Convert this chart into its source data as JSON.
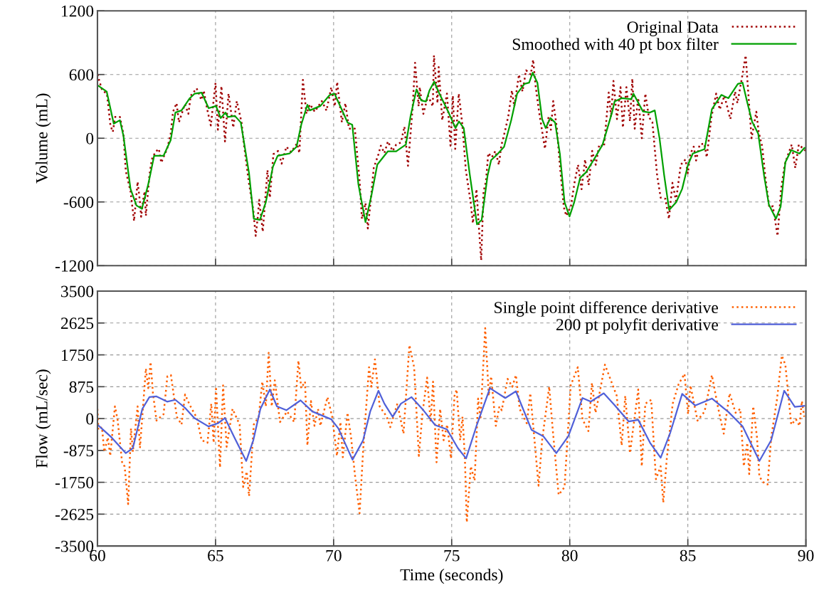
{
  "chart_data": [
    {
      "type": "line",
      "ylabel": "Volume (mL)",
      "xlim": [
        60,
        90
      ],
      "xticks": [
        60,
        65,
        70,
        75,
        80,
        85,
        90
      ],
      "ylim": [
        -1200,
        1200
      ],
      "yticks": [
        -1200,
        -600,
        0,
        600,
        1200
      ],
      "tick_labels": "y",
      "grid": true,
      "legend": "top right",
      "series": [
        {
          "name": "Original Data",
          "color": "#a00000",
          "line_style": "dotted",
          "x": [
            60.0,
            60.2,
            60.4,
            60.55,
            60.65,
            60.75,
            60.95,
            61.1,
            61.2,
            61.4,
            61.55,
            61.7,
            61.8,
            61.85,
            61.95,
            62.0,
            62.05,
            62.2,
            62.3,
            62.45,
            62.6,
            62.7,
            62.95,
            63.1,
            63.2,
            63.35,
            63.45,
            63.7,
            63.85,
            63.95,
            64.2,
            64.4,
            64.5,
            64.65,
            64.8,
            65.0,
            65.1,
            65.25,
            65.4,
            65.55,
            65.75,
            65.9,
            66.1,
            66.2,
            66.4,
            66.6,
            66.7,
            66.8,
            66.85,
            67.0,
            67.2,
            67.3,
            67.45,
            67.65,
            67.8,
            68.0,
            68.2,
            68.45,
            68.55,
            68.7,
            68.85,
            69.0,
            69.2,
            69.5,
            69.7,
            69.9,
            70.05,
            70.15,
            70.35,
            70.5,
            70.65,
            70.9,
            71.1,
            71.2,
            71.35,
            71.45,
            71.6,
            71.7,
            71.9,
            72.0,
            72.15,
            72.3,
            72.5,
            72.65,
            72.85,
            73.0,
            73.15,
            73.35,
            73.45,
            73.6,
            73.65,
            73.8,
            74.0,
            74.2,
            74.25,
            74.4,
            74.45,
            74.6,
            74.8,
            74.95,
            75.05,
            75.15,
            75.3,
            75.45,
            75.6,
            75.8,
            75.9,
            76.05,
            76.15,
            76.25,
            76.35,
            76.45,
            76.55,
            76.7,
            76.85,
            77.0,
            77.1,
            77.25,
            77.4,
            77.55,
            77.65,
            77.85,
            78.0,
            78.15,
            78.35,
            78.45,
            78.55,
            78.7,
            78.95,
            79.1,
            79.2,
            79.3,
            79.45,
            79.6,
            79.75,
            79.85,
            80.05,
            80.2,
            80.35,
            80.5,
            80.65,
            80.8,
            80.95,
            81.1,
            81.25,
            81.45,
            81.55,
            81.65,
            81.75,
            81.85,
            82.0,
            82.15,
            82.25,
            82.4,
            82.55,
            82.65,
            82.75,
            82.9,
            83.05,
            83.2,
            83.35,
            83.5,
            83.7,
            83.85,
            84.05,
            84.2,
            84.35,
            84.5,
            84.7,
            84.9,
            85.0,
            85.1,
            85.25,
            85.35,
            85.5,
            85.7,
            85.8,
            86.0,
            86.2,
            86.35,
            86.55,
            86.8,
            87.0,
            87.1,
            87.3,
            87.45,
            87.6,
            87.7,
            87.9,
            88.0,
            88.15,
            88.3,
            88.45,
            88.6,
            88.8,
            88.95,
            89.1,
            89.25,
            89.4,
            89.55,
            89.7,
            89.85,
            90.0
          ],
          "values": [
            600,
            450,
            420,
            120,
            60,
            200,
            200,
            40,
            -310,
            -500,
            -780,
            -410,
            -600,
            -740,
            -560,
            -500,
            -730,
            -350,
            -200,
            -130,
            -100,
            -230,
            -100,
            40,
            250,
            330,
            150,
            320,
            230,
            400,
            470,
            360,
            450,
            270,
            120,
            520,
            80,
            490,
            -30,
            420,
            100,
            350,
            150,
            -50,
            -400,
            -680,
            -920,
            -720,
            -580,
            -880,
            -300,
            -560,
            -150,
            -120,
            -240,
            -80,
            -130,
            -50,
            -140,
            550,
            230,
            320,
            250,
            350,
            260,
            480,
            300,
            530,
            150,
            330,
            90,
            90,
            -400,
            -760,
            -610,
            -850,
            -520,
            -280,
            -150,
            -70,
            -140,
            -30,
            -120,
            -60,
            -40,
            110,
            -260,
            300,
            710,
            300,
            480,
            230,
            400,
            300,
            780,
            330,
            670,
            170,
            420,
            -70,
            400,
            -100,
            420,
            130,
            -300,
            -600,
            -800,
            -480,
            -830,
            -1150,
            -500,
            -410,
            -140,
            -180,
            -120,
            -250,
            -70,
            60,
            210,
            450,
            300,
            600,
            440,
            640,
            600,
            740,
            500,
            250,
            -100,
            200,
            80,
            350,
            100,
            -300,
            -650,
            -730,
            -640,
            -420,
            -250,
            -480,
            -200,
            -440,
            -120,
            -250,
            -60,
            -80,
            170,
            430,
            200,
            540,
            180,
            480,
            100,
            480,
            160,
            560,
            90,
            380,
            0,
            420,
            200,
            150,
            -350,
            -560,
            -570,
            -760,
            -420,
            -590,
            -250,
            -200,
            -330,
            -150,
            -80,
            -210,
            -60,
            -50,
            -180,
            200,
            420,
            270,
            400,
            180,
            440,
            330,
            580,
            780,
            300,
            0,
            250,
            60,
            -80,
            -400,
            -650,
            -640,
            -920,
            -480,
            -250,
            -150,
            -60,
            -280,
            -60,
            -90,
            -120
          ]
        },
        {
          "name": "Smoothed with 40 pt box filter",
          "color": "#00a000",
          "line_style": "solid",
          "x": [
            60.0,
            60.39,
            60.69,
            60.95,
            61.1,
            61.4,
            61.65,
            61.88,
            62.15,
            62.4,
            62.8,
            63.1,
            63.3,
            63.56,
            63.91,
            64.11,
            64.41,
            64.71,
            65.02,
            65.22,
            65.42,
            65.52,
            65.82,
            66.07,
            66.42,
            66.62,
            66.88,
            67.13,
            67.43,
            67.63,
            68.13,
            68.43,
            68.63,
            68.89,
            68.99,
            69.44,
            69.84,
            70.04,
            70.34,
            70.59,
            70.79,
            71.05,
            71.35,
            71.6,
            71.85,
            72.3,
            72.65,
            73.06,
            73.26,
            73.51,
            73.71,
            73.91,
            74.06,
            74.26,
            74.46,
            74.87,
            75.16,
            75.31,
            75.51,
            75.76,
            76.07,
            76.27,
            76.52,
            76.67,
            76.92,
            77.22,
            77.52,
            77.77,
            78.08,
            78.28,
            78.43,
            78.63,
            78.83,
            78.98,
            79.18,
            79.38,
            79.58,
            79.78,
            79.99,
            80.19,
            80.44,
            80.69,
            81.09,
            81.39,
            81.79,
            81.9,
            82.2,
            82.6,
            82.7,
            83.1,
            83.4,
            83.6,
            83.8,
            84.0,
            84.21,
            84.51,
            84.76,
            85.01,
            85.21,
            85.71,
            86.02,
            86.42,
            86.72,
            87.12,
            87.32,
            87.52,
            87.72,
            87.98,
            88.23,
            88.43,
            88.73,
            88.93,
            89.13,
            89.38,
            89.73,
            89.93,
            90.0
          ],
          "values": [
            500,
            440,
            137,
            170,
            23,
            -477,
            -633,
            -665,
            -435,
            -165,
            -165,
            -19,
            242,
            262,
            377,
            419,
            429,
            283,
            304,
            190,
            242,
            200,
            210,
            148,
            -331,
            -758,
            -769,
            -602,
            -269,
            -165,
            -144,
            -81,
            127,
            315,
            262,
            304,
            408,
            419,
            273,
            148,
            127,
            -435,
            -790,
            -540,
            -248,
            -123,
            -123,
            -60,
            210,
            460,
            356,
            346,
            450,
            533,
            429,
            242,
            96,
            158,
            96,
            -331,
            -810,
            -769,
            -352,
            -206,
            -154,
            -81,
            169,
            419,
            512,
            523,
            617,
            523,
            179,
            96,
            190,
            148,
            -144,
            -602,
            -737,
            -602,
            -373,
            -321,
            -175,
            -60,
            242,
            346,
            377,
            367,
            419,
            252,
            242,
            262,
            2,
            -352,
            -675,
            -602,
            -477,
            -248,
            -144,
            -102,
            273,
            408,
            377,
            512,
            523,
            335,
            158,
            44,
            -352,
            -623,
            -758,
            -644,
            -227,
            -112,
            -144,
            -92,
            -92
          ]
        }
      ]
    },
    {
      "type": "line",
      "xlabel": "Time (seconds)",
      "ylabel": "Flow (mL/sec)",
      "xlim": [
        60,
        90
      ],
      "xticks": [
        60,
        65,
        70,
        75,
        80,
        85,
        90
      ],
      "ylim": [
        -3500,
        3500
      ],
      "yticks": [
        -3500,
        -2625,
        -1750,
        -875,
        0,
        875,
        1750,
        2625,
        3500
      ],
      "grid": true,
      "legend": "top right",
      "series": [
        {
          "name": "Single point difference derivative",
          "color": "#ff6000",
          "line_style": "dotted",
          "x": [
            60.0,
            60.04,
            60.19,
            60.29,
            60.44,
            60.54,
            60.74,
            60.85,
            61.05,
            61.15,
            61.3,
            61.42,
            61.5,
            61.7,
            61.8,
            62.05,
            62.15,
            62.25,
            62.35,
            62.5,
            62.8,
            62.96,
            63.11,
            63.36,
            63.56,
            63.71,
            63.91,
            64.21,
            64.41,
            64.66,
            64.82,
            64.92,
            65.02,
            65.19,
            65.32,
            65.47,
            65.72,
            66.02,
            66.17,
            66.32,
            66.42,
            66.62,
            66.83,
            66.98,
            67.13,
            67.25,
            67.38,
            67.51,
            67.73,
            68.03,
            68.33,
            68.51,
            68.63,
            68.79,
            68.89,
            69.04,
            69.19,
            69.34,
            69.44,
            69.74,
            69.94,
            70.14,
            70.29,
            70.39,
            70.59,
            70.74,
            70.9,
            71.1,
            71.25,
            71.5,
            71.6,
            71.75,
            71.95,
            72.25,
            72.4,
            72.7,
            72.96,
            73.21,
            73.41,
            73.61,
            73.76,
            73.96,
            74.11,
            74.21,
            74.36,
            74.51,
            74.66,
            74.81,
            74.97,
            75.12,
            75.21,
            75.36,
            75.46,
            75.56,
            75.64,
            75.81,
            75.97,
            76.12,
            76.22,
            76.42,
            76.57,
            76.67,
            76.87,
            77.02,
            77.12,
            77.37,
            77.57,
            77.72,
            77.88,
            78.18,
            78.33,
            78.68,
            78.83,
            79.13,
            79.28,
            79.53,
            79.78,
            80.04,
            80.34,
            80.54,
            80.79,
            80.94,
            81.09,
            81.24,
            81.49,
            81.74,
            81.99,
            82.2,
            82.35,
            82.55,
            82.9,
            83.05,
            83.2,
            83.45,
            83.65,
            83.85,
            83.96,
            84.11,
            84.36,
            84.61,
            84.86,
            85.01,
            85.11,
            85.41,
            85.71,
            86.02,
            86.27,
            86.52,
            86.77,
            87.02,
            87.22,
            87.37,
            87.52,
            87.6,
            87.77,
            87.93,
            88.03,
            88.23,
            88.38,
            88.53,
            88.78,
            88.98,
            89.13,
            89.38,
            89.58,
            89.73,
            89.83,
            89.93
          ],
          "values": [
            265,
            -310,
            -235,
            -915,
            -520,
            -1025,
            335,
            -20,
            -1240,
            -1310,
            -2350,
            -270,
            -915,
            335,
            -810,
            1375,
            835,
            1555,
            695,
            -55,
            120,
            1160,
            1195,
            50,
            -165,
            660,
            370,
            15,
            -595,
            -665,
            410,
            -665,
            875,
            -1345,
            910,
            -775,
            265,
            -165,
            -1880,
            -1455,
            -2130,
            -165,
            50,
            1015,
            335,
            1805,
            335,
            1050,
            -95,
            195,
            -95,
            1590,
            835,
            1015,
            -740,
            480,
            -200,
            265,
            -200,
            590,
            50,
            -1025,
            -95,
            -1060,
            160,
            -520,
            -1525,
            -2600,
            -880,
            1410,
            875,
            1625,
            335,
            50,
            -235,
            410,
            -415,
            2020,
            1410,
            -1025,
            120,
            1125,
            -95,
            1015,
            -1200,
            265,
            -595,
            -165,
            -1095,
            625,
            800,
            -595,
            50,
            -1095,
            -2850,
            -1310,
            -1705,
            550,
            -20,
            2485,
            625,
            1160,
            -200,
            335,
            230,
            1090,
            875,
            1195,
            265,
            -130,
            695,
            -1845,
            -595,
            875,
            -310,
            -2095,
            -1880,
            910,
            1410,
            -20,
            -345,
            980,
            160,
            625,
            1480,
            1050,
            625,
            -740,
            625,
            -950,
            800,
            -1310,
            410,
            515,
            -1665,
            -1310,
            -2310,
            -1095,
            410,
            945,
            1230,
            120,
            910,
            -55,
            195,
            1195,
            335,
            -415,
            695,
            160,
            265,
            -1310,
            -665,
            -1525,
            335,
            -520,
            -1595,
            -1775,
            -1810,
            -520,
            550,
            1730,
            1480,
            -165,
            -20,
            -200,
            480,
            50
          ]
        },
        {
          "name": "200 pt polyfit derivative",
          "color": "#5060d8",
          "line_style": "solid",
          "x": [
            60.0,
            60.6,
            61.2,
            61.5,
            61.9,
            62.2,
            62.5,
            62.95,
            63.3,
            63.7,
            64.1,
            64.7,
            65.1,
            65.4,
            65.8,
            66.3,
            66.6,
            66.9,
            67.3,
            67.6,
            68.0,
            68.6,
            69.1,
            69.9,
            70.2,
            70.8,
            71.25,
            71.55,
            71.9,
            72.15,
            72.5,
            72.85,
            73.3,
            73.8,
            74.3,
            74.8,
            75.26,
            75.61,
            76.07,
            76.62,
            77.27,
            77.72,
            78.38,
            78.88,
            79.43,
            79.94,
            80.54,
            80.89,
            81.44,
            81.9,
            82.5,
            82.9,
            83.4,
            83.85,
            84.26,
            84.76,
            85.31,
            86.02,
            86.72,
            87.32,
            88.03,
            88.53,
            89.08,
            89.53,
            89.93
          ],
          "values": [
            -165,
            -520,
            -950,
            -810,
            265,
            590,
            610,
            465,
            515,
            300,
            15,
            -215,
            -130,
            15,
            -520,
            -1165,
            -595,
            265,
            800,
            335,
            230,
            500,
            195,
            -20,
            -270,
            -1130,
            -595,
            195,
            765,
            410,
            50,
            410,
            590,
            230,
            -180,
            -295,
            -810,
            -1095,
            -165,
            835,
            565,
            750,
            -310,
            -485,
            -950,
            -485,
            565,
            465,
            695,
            370,
            -80,
            -35,
            -665,
            -1075,
            -380,
            680,
            360,
            550,
            180,
            -215,
            -1165,
            -595,
            765,
            320,
            350
          ]
        }
      ]
    }
  ]
}
